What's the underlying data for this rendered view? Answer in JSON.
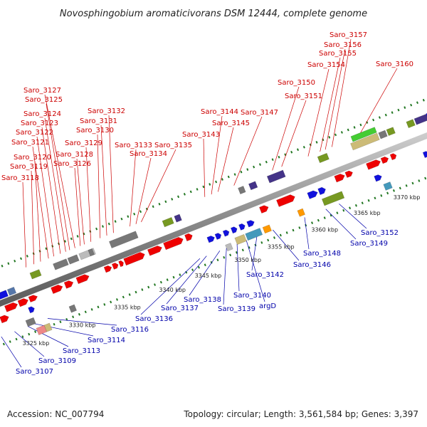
{
  "title": "Novosphingobium aromaticivorans DSM 12444, complete genome",
  "footer": {
    "accession": "Accession: NC_007794",
    "topology": "Topology: circular; Length: 3,561,584 bp; Genes: 3,397"
  },
  "colors": {
    "top_labels": "#cc0000",
    "bottom_labels": "#0000aa",
    "backbone": "#888888",
    "gene_red": "#ee0000",
    "gene_blue": "#1111dd",
    "gene_gray": "#777777",
    "gene_olive": "#779922",
    "gene_orange": "#ff9900",
    "gene_purple": "#443388",
    "tick_green": "#227722"
  },
  "scale": [
    {
      "label": "3325 kbp"
    },
    {
      "label": "3330 kbp"
    },
    {
      "label": "3335 kbp"
    },
    {
      "label": "3340 kbp"
    },
    {
      "label": "3345 kbp"
    },
    {
      "label": "3350 kbp"
    },
    {
      "label": "3355 kbp"
    },
    {
      "label": "3360 kbp"
    },
    {
      "label": "3365 kbp"
    },
    {
      "label": "3370 kbp"
    }
  ],
  "top_genes": [
    "Saro_3118",
    "Saro_3119",
    "Saro_3120",
    "Saro_3121",
    "Saro_3122",
    "Saro_3123",
    "Saro_3124",
    "Saro_3125",
    "Saro_3127",
    "Saro_3126",
    "Saro_3128",
    "Saro_3129",
    "Saro_3130",
    "Saro_3131",
    "Saro_3132",
    "Saro_3133",
    "Saro_3134",
    "Saro_3135",
    "Saro_3143",
    "Saro_3144",
    "Saro_3145",
    "Saro_3147",
    "Saro_3150",
    "Saro_3151",
    "Saro_3154",
    "Saro_3155",
    "Saro_3156",
    "Saro_3157",
    "Saro_3160"
  ],
  "bottom_genes": [
    "Saro_3107",
    "Saro_3109",
    "Saro_3113",
    "Saro_3114",
    "Saro_3116",
    "Saro_3136",
    "Saro_3137",
    "Saro_3138",
    "Saro_3139",
    "Saro_3140",
    "argD",
    "Saro_3142",
    "Saro_3146",
    "Saro_3148",
    "Saro_3149",
    "Saro_3152"
  ]
}
